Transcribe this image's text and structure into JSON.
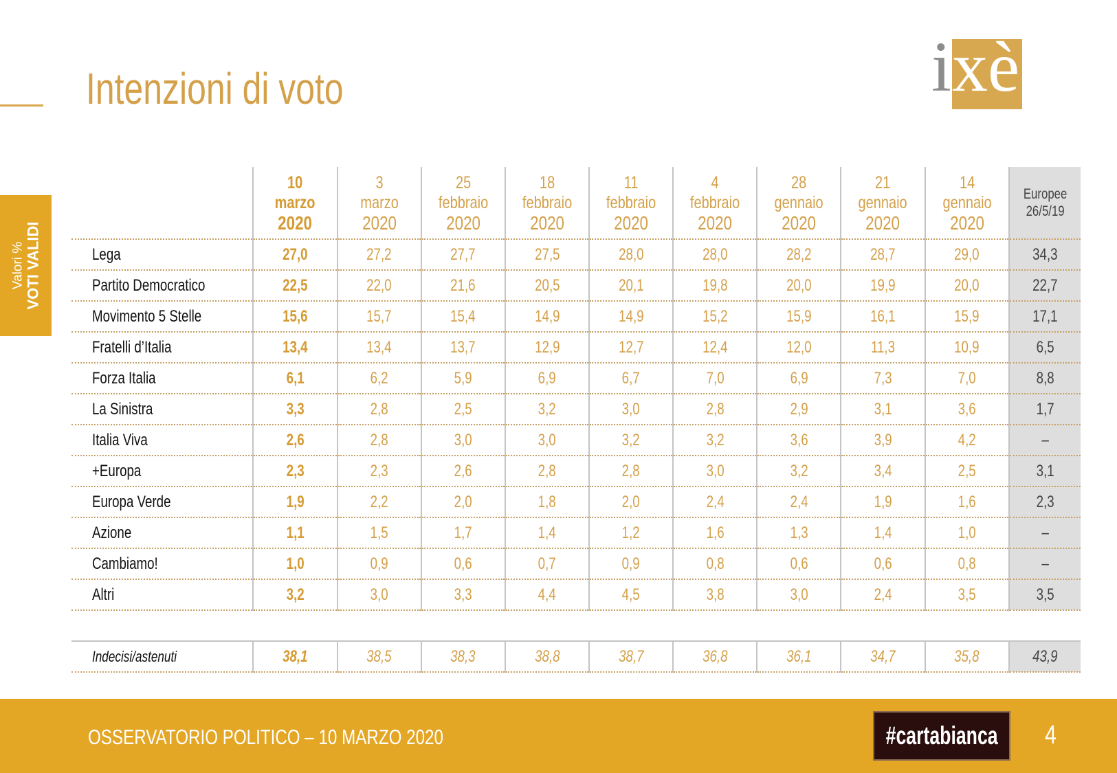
{
  "title": "Intenzioni di voto",
  "side_tab": {
    "line1": "Valori %",
    "line2": "VOTI VALIDI"
  },
  "logo": {
    "i": "i",
    "xe": "xè"
  },
  "footer": {
    "text": "OSSERVATORIO POLITICO – 10 MARZO 2020",
    "brand": "#cartabianca",
    "page": "4"
  },
  "colors": {
    "gold": "#d4a04a",
    "bar": "#e3a625",
    "eu_bg": "#dedede"
  },
  "chart_data": {
    "type": "table",
    "columns": [
      {
        "day": "10",
        "month": "marzo",
        "year": "2020"
      },
      {
        "day": "3",
        "month": "marzo",
        "year": "2020"
      },
      {
        "day": "25",
        "month": "febbraio",
        "year": "2020"
      },
      {
        "day": "18",
        "month": "febbraio",
        "year": "2020"
      },
      {
        "day": "11",
        "month": "febbraio",
        "year": "2020"
      },
      {
        "day": "4",
        "month": "febbraio",
        "year": "2020"
      },
      {
        "day": "28",
        "month": "gennaio",
        "year": "2020"
      },
      {
        "day": "21",
        "month": "gennaio",
        "year": "2020"
      },
      {
        "day": "14",
        "month": "gennaio",
        "year": "2020"
      },
      {
        "label1": "Europee",
        "label2": "26/5/19"
      }
    ],
    "rows": [
      {
        "party": "Lega",
        "values": [
          "27,0",
          "27,2",
          "27,7",
          "27,5",
          "28,0",
          "28,0",
          "28,2",
          "28,7",
          "29,0",
          "34,3"
        ]
      },
      {
        "party": "Partito Democratico",
        "values": [
          "22,5",
          "22,0",
          "21,6",
          "20,5",
          "20,1",
          "19,8",
          "20,0",
          "19,9",
          "20,0",
          "22,7"
        ]
      },
      {
        "party": "Movimento 5 Stelle",
        "values": [
          "15,6",
          "15,7",
          "15,4",
          "14,9",
          "14,9",
          "15,2",
          "15,9",
          "16,1",
          "15,9",
          "17,1"
        ]
      },
      {
        "party": "Fratelli d’Italia",
        "values": [
          "13,4",
          "13,4",
          "13,7",
          "12,9",
          "12,7",
          "12,4",
          "12,0",
          "11,3",
          "10,9",
          "6,5"
        ]
      },
      {
        "party": "Forza Italia",
        "values": [
          "6,1",
          "6,2",
          "5,9",
          "6,9",
          "6,7",
          "7,0",
          "6,9",
          "7,3",
          "7,0",
          "8,8"
        ]
      },
      {
        "party": "La Sinistra",
        "values": [
          "3,3",
          "2,8",
          "2,5",
          "3,2",
          "3,0",
          "2,8",
          "2,9",
          "3,1",
          "3,6",
          "1,7"
        ]
      },
      {
        "party": "Italia Viva",
        "values": [
          "2,6",
          "2,8",
          "3,0",
          "3,0",
          "3,2",
          "3,2",
          "3,6",
          "3,9",
          "4,2",
          "–"
        ]
      },
      {
        "party": "+Europa",
        "values": [
          "2,3",
          "2,3",
          "2,6",
          "2,8",
          "2,8",
          "3,0",
          "3,2",
          "3,4",
          "2,5",
          "3,1"
        ]
      },
      {
        "party": "Europa Verde",
        "values": [
          "1,9",
          "2,2",
          "2,0",
          "1,8",
          "2,0",
          "2,4",
          "2,4",
          "1,9",
          "1,6",
          "2,3"
        ]
      },
      {
        "party": "Azione",
        "values": [
          "1,1",
          "1,5",
          "1,7",
          "1,4",
          "1,2",
          "1,6",
          "1,3",
          "1,4",
          "1,0",
          "–"
        ]
      },
      {
        "party": "Cambiamo!",
        "values": [
          "1,0",
          "0,9",
          "0,6",
          "0,7",
          "0,9",
          "0,8",
          "0,6",
          "0,6",
          "0,8",
          "–"
        ]
      },
      {
        "party": "Altri",
        "values": [
          "3,2",
          "3,0",
          "3,3",
          "4,4",
          "4,5",
          "3,8",
          "3,0",
          "2,4",
          "3,5",
          "3,5"
        ]
      }
    ],
    "undecided": {
      "label": "Indecisi/astenuti",
      "values": [
        "38,1",
        "38,5",
        "38,3",
        "38,8",
        "38,7",
        "36,8",
        "36,1",
        "34,7",
        "35,8",
        "43,9"
      ]
    }
  }
}
